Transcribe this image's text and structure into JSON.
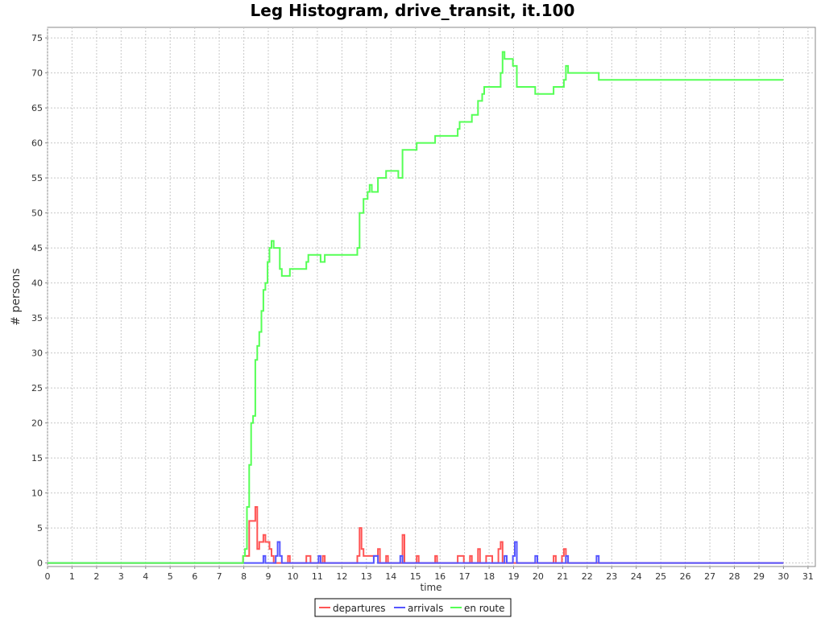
{
  "chart_data": {
    "type": "line",
    "title": "Leg Histogram, drive_transit, it.100",
    "xlabel": "time",
    "ylabel": "# persons",
    "xlim": [
      0,
      31.3
    ],
    "ylim": [
      -0.5,
      76.5
    ],
    "xticks": [
      0,
      1,
      2,
      3,
      4,
      5,
      6,
      7,
      8,
      9,
      10,
      11,
      12,
      13,
      14,
      15,
      16,
      17,
      18,
      19,
      20,
      21,
      22,
      23,
      24,
      25,
      26,
      27,
      28,
      29,
      30,
      31
    ],
    "yticks": [
      0,
      5,
      10,
      15,
      20,
      25,
      30,
      35,
      40,
      45,
      50,
      55,
      60,
      65,
      70,
      75
    ],
    "grid": true,
    "step": true,
    "legend_position": "bottom-center",
    "series": [
      {
        "name": "departures",
        "color": "#ff5555",
        "x": [
          0,
          7.97,
          8.22,
          8.47,
          8.55,
          8.63,
          8.8,
          8.88,
          8.97,
          9.05,
          9.13,
          9.22,
          9.47,
          9.8,
          9.88,
          10.55,
          10.72,
          11.22,
          11.3,
          12.63,
          12.72,
          12.8,
          12.88,
          13.05,
          13.13,
          13.38,
          13.47,
          13.55,
          13.8,
          13.88,
          14.47,
          14.55,
          15.05,
          15.13,
          15.8,
          15.88,
          16.72,
          16.8,
          16.88,
          16.97,
          17.22,
          17.3,
          17.55,
          17.63,
          17.88,
          18.13,
          18.38,
          18.47,
          18.55,
          20.63,
          20.72,
          20.97,
          21.05,
          21.13,
          30.0
        ],
        "y": [
          0,
          1,
          6,
          8,
          2,
          3,
          4,
          3,
          3,
          2,
          1,
          0,
          0,
          1,
          0,
          1,
          0,
          1,
          0,
          1,
          5,
          2,
          1,
          1,
          1,
          1,
          2,
          0,
          1,
          0,
          4,
          0,
          1,
          0,
          1,
          0,
          1,
          1,
          1,
          0,
          1,
          0,
          2,
          0,
          1,
          0,
          2,
          3,
          0,
          1,
          0,
          1,
          2,
          0,
          0
        ]
      },
      {
        "name": "arrivals",
        "color": "#5555ff",
        "x": [
          0,
          8.8,
          8.88,
          9.3,
          9.38,
          9.47,
          9.55,
          11.05,
          11.13,
          13.3,
          13.47,
          14.38,
          14.47,
          18.63,
          18.72,
          18.97,
          19.05,
          19.13,
          19.88,
          19.97,
          21.13,
          21.22,
          22.38,
          22.47,
          30.0
        ],
        "y": [
          0,
          1,
          0,
          1,
          3,
          1,
          0,
          1,
          0,
          1,
          0,
          1,
          0,
          1,
          0,
          1,
          3,
          0,
          1,
          0,
          1,
          0,
          1,
          0,
          0
        ]
      },
      {
        "name": "en route",
        "color": "#55ff55",
        "x": [
          0,
          7.97,
          8.05,
          8.13,
          8.22,
          8.3,
          8.38,
          8.47,
          8.55,
          8.63,
          8.72,
          8.8,
          8.88,
          8.97,
          9.05,
          9.13,
          9.22,
          9.47,
          9.55,
          9.88,
          10.55,
          10.63,
          11.13,
          11.3,
          12.63,
          12.72,
          12.88,
          13.05,
          13.13,
          13.22,
          13.47,
          13.8,
          14.3,
          14.47,
          15.05,
          15.8,
          16.72,
          16.8,
          17.3,
          17.55,
          17.72,
          17.8,
          18.47,
          18.55,
          18.63,
          18.97,
          19.13,
          19.88,
          20.63,
          21.05,
          21.13,
          21.22,
          22.47,
          30.0
        ],
        "y": [
          0,
          1,
          2,
          8,
          14,
          20,
          21,
          29,
          31,
          33,
          36,
          39,
          40,
          43,
          45,
          46,
          45,
          42,
          41,
          42,
          43,
          44,
          43,
          44,
          45,
          50,
          52,
          53,
          54,
          53,
          55,
          56,
          55,
          59,
          60,
          61,
          62,
          63,
          64,
          66,
          67,
          68,
          70,
          73,
          72,
          71,
          68,
          67,
          68,
          69,
          71,
          70,
          69,
          69
        ]
      }
    ]
  }
}
